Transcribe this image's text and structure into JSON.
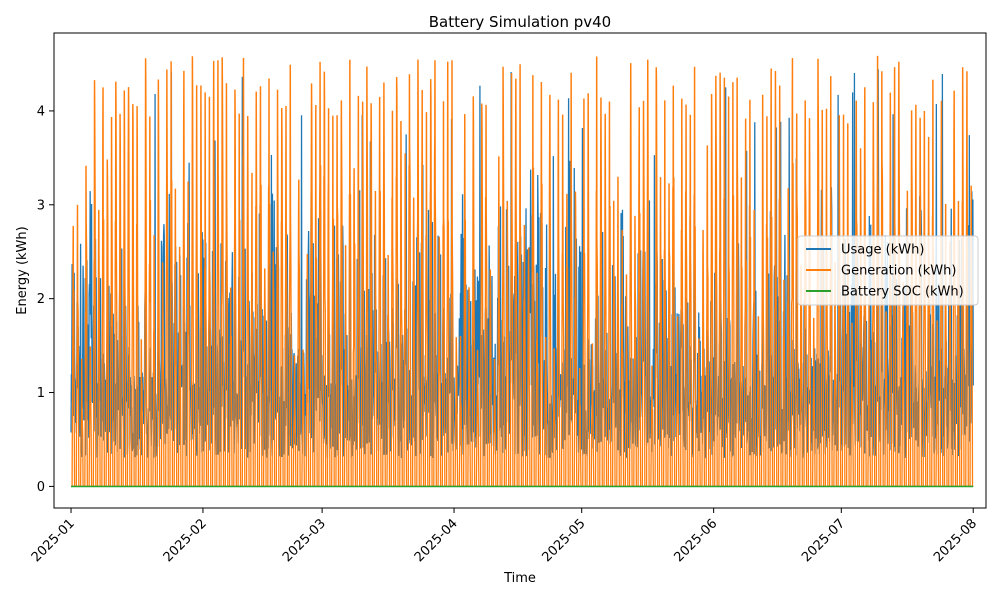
{
  "chart_data": {
    "type": "line",
    "title": "Battery Simulation pv40",
    "xlabel": "Time",
    "ylabel": "Energy (kWh)",
    "x_range": [
      "2024-12-28",
      "2025-08-04"
    ],
    "x_data_range": [
      "2025-01-01",
      "2025-08-01"
    ],
    "ylim": [
      -0.23,
      4.83
    ],
    "x_ticks": [
      "2025-01",
      "2025-02",
      "2025-03",
      "2025-04",
      "2025-05",
      "2025-06",
      "2025-07",
      "2025-08"
    ],
    "x_tick_dates": [
      "2025-01-01",
      "2025-02-01",
      "2025-03-01",
      "2025-04-01",
      "2025-05-01",
      "2025-06-01",
      "2025-07-01",
      "2025-08-01"
    ],
    "y_ticks": [
      0,
      1,
      2,
      3,
      4
    ],
    "grid": false,
    "legend_position": "center-right",
    "series": [
      {
        "name": "Usage (kWh)",
        "color": "#1f77b4",
        "typical_range": [
          0.3,
          4.5
        ]
      },
      {
        "name": "Generation (kWh)",
        "color": "#ff7f0e",
        "typical_range": [
          0,
          4.6
        ]
      },
      {
        "name": "Battery SOC (kWh)",
        "color": "#2ca02c",
        "constant_value": 0
      }
    ]
  }
}
